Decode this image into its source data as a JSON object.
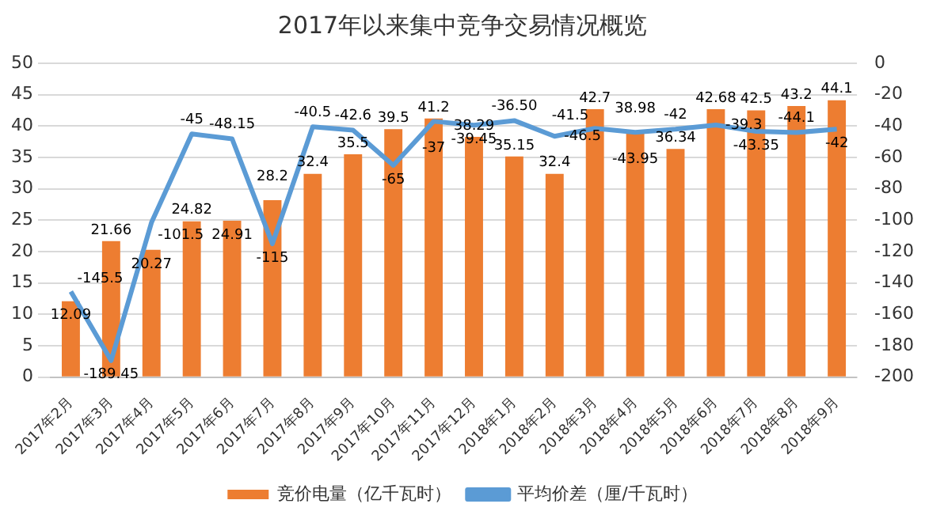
{
  "chart_data": {
    "type": "bar",
    "title": "2017年以来集中竞争交易情况概览",
    "categories": [
      "2017年2月",
      "2017年3月",
      "2017年4月",
      "2017年5月",
      "2017年6月",
      "2017年7月",
      "2017年8月",
      "2017年9月",
      "2017年10月",
      "2017年11月",
      "2017年12月",
      "2018年1月",
      "2018年2月",
      "2018年3月",
      "2018年4月",
      "2018年5月",
      "2018年6月",
      "2018年7月",
      "2018年8月",
      "2018年9月"
    ],
    "series": [
      {
        "name": "竞价电量（亿千瓦时）",
        "color": "#ed7d31",
        "values": [
          12.09,
          21.66,
          20.27,
          24.82,
          24.91,
          28.2,
          32.4,
          35.5,
          39.5,
          41.2,
          38.29,
          35.15,
          32.4,
          42.7,
          38.98,
          36.34,
          42.68,
          42.5,
          43.2,
          44.1
        ],
        "value_labels": [
          "12.09",
          "21.66",
          "20.27",
          "24.82",
          "24.91",
          "28.2",
          "32.4",
          "35.5",
          "39.5",
          "41.2",
          "38.29",
          "35.15",
          "32.4",
          "42.7",
          "38.98",
          "36.34",
          "42.68",
          "42.5",
          "43.2",
          "44.1"
        ]
      },
      {
        "name": "平均价差（厘/千瓦时）",
        "type": "line",
        "axis": "y2",
        "color": "#5b9bd5",
        "values": [
          -145.5,
          -189.45,
          -101.5,
          -45,
          -48.15,
          -115,
          -40.5,
          -42.6,
          -65,
          -37,
          -39.45,
          -36.5,
          -46.5,
          -41.5,
          -43.95,
          -42,
          -39.3,
          -43.35,
          -44.1,
          -42
        ],
        "value_labels": [
          "-145.5",
          "-189.45",
          "-101.5",
          "-45",
          "-48.15",
          "-115",
          "-40.5",
          "-42.6",
          "-65",
          "-37",
          "-39.45",
          "-36.50",
          "-46.5",
          "-41.5",
          "-43.95",
          "-42",
          "-39.3",
          "-43.35",
          "-44.1",
          "-42"
        ]
      }
    ],
    "ylim": [
      0,
      50
    ],
    "yticks": [
      0,
      5,
      10,
      15,
      20,
      25,
      30,
      35,
      40,
      45,
      50
    ],
    "y2lim": [
      -200,
      0
    ],
    "y2ticks": [
      -200,
      -180,
      -160,
      -140,
      -120,
      -100,
      -80,
      -60,
      -40,
      -20,
      0
    ],
    "grid": "y",
    "legend": "bottom",
    "marker": "none",
    "line_style": "solid"
  }
}
